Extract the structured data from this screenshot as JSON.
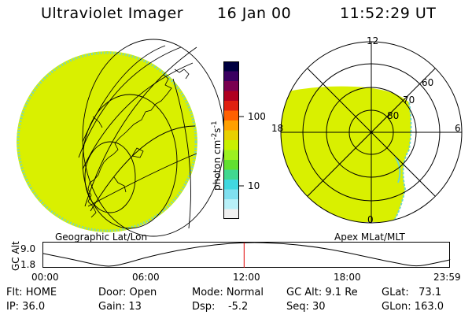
{
  "header": {
    "instrument": "Ultraviolet Imager",
    "date": "16 Jan 00",
    "time": "11:52:29 UT"
  },
  "left_panel": {
    "label": "Geographic Lat/Lon"
  },
  "right_panel": {
    "label": "Apex MLat/MLT",
    "mlt_labels": [
      "12",
      "18",
      "6",
      "0"
    ],
    "mlat_labels": [
      "60",
      "70",
      "80"
    ]
  },
  "colorbar": {
    "unit_label": "photon cm",
    "unit_exp1": "-2",
    "unit_mid": "s",
    "unit_exp2": "-1",
    "ticks": [
      "100",
      "10"
    ],
    "scale": "log",
    "colors": [
      "#000040",
      "#3a0060",
      "#7a0050",
      "#b00020",
      "#e02010",
      "#ff6000",
      "#ffa000",
      "#e8d000",
      "#c8f000",
      "#9cf020",
      "#60e030",
      "#40d890",
      "#40d8e0",
      "#80e0f0",
      "#b8f0f8",
      "#f0f0f0"
    ]
  },
  "altitude_chart": {
    "ylabel": "GC Alt",
    "yticks": [
      "9.0",
      "1.8"
    ],
    "xticks": [
      "00:00",
      "06:00",
      "12:00",
      "18:00",
      "23:59"
    ],
    "current_time_marker_color": "#e00000"
  },
  "status": {
    "flt": "Flt: HOME",
    "ip": "IP: 36.0",
    "door": "Door: Open",
    "gain": "Gain: 13",
    "mode": "Mode: Normal",
    "dsp": "Dsp:    -5.2",
    "gc_alt": "GC Alt: 9.1 Re",
    "seq": "Seq: 30",
    "glat": "GLat:   73.1",
    "glon": "GLon: 163.0"
  },
  "image_colors": {
    "fill": "#d9f000",
    "rim": "#6fd6c8"
  },
  "chart_data": {
    "type": "line",
    "title": "",
    "xlabel": "",
    "ylabel": "GC Alt",
    "ylim": [
      1.8,
      9.0
    ],
    "xlim": [
      "00:00",
      "23:59"
    ],
    "x": [
      "00:00",
      "02:00",
      "03:00",
      "04:00",
      "05:00",
      "06:00",
      "08:00",
      "10:00",
      "12:00",
      "14:00",
      "16:00",
      "18:00",
      "20:00",
      "21:00",
      "22:00",
      "23:00",
      "23:59"
    ],
    "values": [
      5.8,
      3.8,
      2.6,
      1.8,
      3.0,
      4.5,
      6.8,
      8.3,
      9.1,
      8.8,
      7.8,
      6.0,
      3.8,
      2.8,
      1.9,
      2.8,
      3.9
    ],
    "markers": [
      {
        "x": "11:52",
        "label": "current time"
      }
    ]
  }
}
